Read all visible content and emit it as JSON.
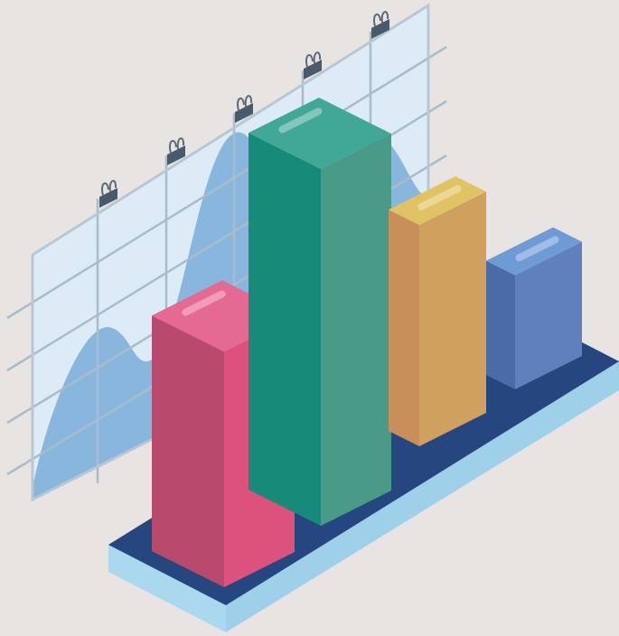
{
  "illustration": {
    "subject": "isometric-3d-bar-chart-illustration",
    "background_color": "#e7e4e2",
    "board": {
      "fill": "#dcebf6",
      "grid_color": "#a9bccb",
      "wave_color": "#7fb0da",
      "clip_icon": "binder-clip-icon",
      "clip_count": 5
    },
    "base_plate": {
      "top_color": "#26467f",
      "side_color": "#a9d8ef"
    },
    "bars": [
      {
        "name": "pink-bar",
        "relative_height": 0.66,
        "top": "#e56a93",
        "left": "#b84a6d",
        "right": "#dc527d"
      },
      {
        "name": "green-bar",
        "relative_height": 1.0,
        "top": "#41a897",
        "left": "#178a7a",
        "right": "#4a9a8a"
      },
      {
        "name": "yellow-bar",
        "relative_height": 0.62,
        "top": "#e0c463",
        "left": "#c98f5b",
        "right": "#cfa05e"
      },
      {
        "name": "blue-bar",
        "relative_height": 0.32,
        "top": "#6e9ad6",
        "left": "#4a6ba8",
        "right": "#5f7fbd"
      }
    ]
  }
}
